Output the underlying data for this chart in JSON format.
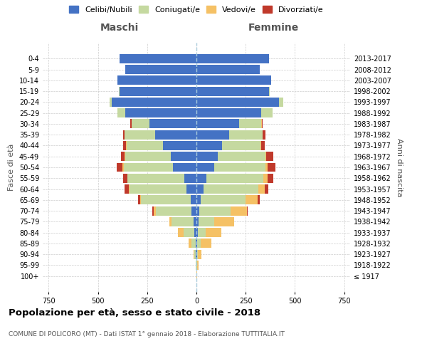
{
  "age_groups": [
    "100+",
    "95-99",
    "90-94",
    "85-89",
    "80-84",
    "75-79",
    "70-74",
    "65-69",
    "60-64",
    "55-59",
    "50-54",
    "45-49",
    "40-44",
    "35-39",
    "30-34",
    "25-29",
    "20-24",
    "15-19",
    "10-14",
    "5-9",
    "0-4"
  ],
  "birth_years": [
    "≤ 1917",
    "1918-1922",
    "1923-1927",
    "1928-1932",
    "1933-1937",
    "1938-1942",
    "1943-1947",
    "1948-1952",
    "1953-1957",
    "1958-1962",
    "1963-1967",
    "1968-1972",
    "1973-1977",
    "1978-1982",
    "1983-1987",
    "1988-1992",
    "1993-1997",
    "1998-2002",
    "2003-2007",
    "2008-2012",
    "2013-2017"
  ],
  "maschi": {
    "celibi": [
      1,
      1,
      2,
      5,
      10,
      15,
      25,
      30,
      50,
      60,
      120,
      130,
      170,
      210,
      240,
      360,
      430,
      390,
      400,
      360,
      390
    ],
    "coniugati": [
      0,
      2,
      8,
      20,
      55,
      110,
      180,
      250,
      290,
      290,
      250,
      230,
      185,
      155,
      90,
      40,
      10,
      2,
      0,
      0,
      0
    ],
    "vedovi": [
      0,
      2,
      5,
      15,
      30,
      12,
      10,
      5,
      3,
      2,
      5,
      3,
      1,
      1,
      0,
      0,
      0,
      0,
      0,
      0,
      0
    ],
    "divorziati": [
      0,
      0,
      0,
      0,
      0,
      0,
      10,
      10,
      20,
      20,
      30,
      20,
      15,
      5,
      5,
      2,
      0,
      0,
      0,
      0,
      0
    ]
  },
  "femmine": {
    "nubili": [
      1,
      1,
      2,
      5,
      8,
      10,
      15,
      20,
      35,
      50,
      90,
      110,
      130,
      165,
      215,
      330,
      420,
      370,
      380,
      320,
      370
    ],
    "coniugate": [
      0,
      2,
      5,
      15,
      40,
      80,
      160,
      230,
      280,
      290,
      260,
      240,
      195,
      170,
      115,
      55,
      20,
      3,
      0,
      0,
      0
    ],
    "vedove": [
      2,
      8,
      20,
      55,
      80,
      100,
      80,
      60,
      30,
      20,
      10,
      5,
      3,
      2,
      1,
      0,
      0,
      0,
      0,
      0,
      0
    ],
    "divorziate": [
      0,
      0,
      0,
      0,
      0,
      0,
      5,
      10,
      20,
      30,
      40,
      35,
      20,
      15,
      5,
      3,
      0,
      0,
      0,
      0,
      0
    ]
  },
  "colors": {
    "celibi": "#4472C4",
    "coniugati": "#c5d9a0",
    "vedovi": "#f5c165",
    "divorziati": "#c0392b"
  },
  "xlim": 780,
  "title": "Popolazione per età, sesso e stato civile - 2018",
  "subtitle": "COMUNE DI POLICORO (MT) - Dati ISTAT 1° gennaio 2018 - Elaborazione TUTTITALIA.IT",
  "xlabel_left": "Maschi",
  "xlabel_right": "Femmine",
  "ylabel": "Fasce di età",
  "ylabel_right": "Anni di nascita"
}
